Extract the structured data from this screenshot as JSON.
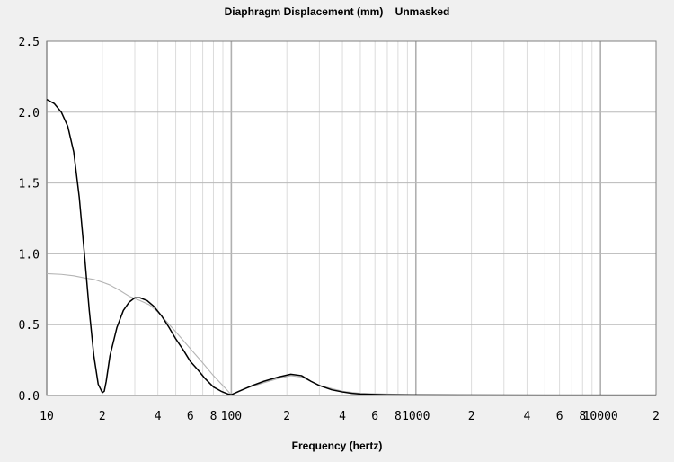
{
  "chart_data": {
    "type": "line",
    "title": "Diaphragm Displacement (mm)",
    "subtitle": "Unmasked",
    "xlabel": "Frequency (hertz)",
    "ylabel": "",
    "x_scale": "log",
    "xlim": [
      10,
      20000
    ],
    "ylim": [
      0,
      2.5
    ],
    "grid": true,
    "yticks": [
      {
        "value": 0,
        "label": "0.0"
      },
      {
        "value": 0.5,
        "label": "0.5"
      },
      {
        "value": 1.0,
        "label": "1.0"
      },
      {
        "value": 1.5,
        "label": "1.5"
      },
      {
        "value": 2.0,
        "label": "2.0"
      },
      {
        "value": 2.5,
        "label": "2.5"
      }
    ],
    "xticks": [
      {
        "value": 10,
        "label": "10"
      },
      {
        "value": 20,
        "label": "2"
      },
      {
        "value": 40,
        "label": "4"
      },
      {
        "value": 60,
        "label": "6"
      },
      {
        "value": 80,
        "label": "8"
      },
      {
        "value": 100,
        "label": "100"
      },
      {
        "value": 200,
        "label": "2"
      },
      {
        "value": 400,
        "label": "4"
      },
      {
        "value": 600,
        "label": "6"
      },
      {
        "value": 800,
        "label": "8"
      },
      {
        "value": 1000,
        "label": "1000"
      },
      {
        "value": 2000,
        "label": "2"
      },
      {
        "value": 4000,
        "label": "4"
      },
      {
        "value": 6000,
        "label": "6"
      },
      {
        "value": 8000,
        "label": "8"
      },
      {
        "value": 10000,
        "label": "10000"
      },
      {
        "value": 20000,
        "label": "2"
      }
    ],
    "series": [
      {
        "color": "#000000",
        "x": [
          10,
          11,
          12,
          13,
          14,
          15,
          16,
          17,
          18,
          19,
          20,
          20.5,
          21,
          22,
          24,
          26,
          28,
          30,
          32,
          35,
          38,
          42,
          46,
          50,
          55,
          60,
          66,
          72,
          80,
          88,
          96,
          100,
          110,
          130,
          150,
          180,
          210,
          240,
          270,
          300,
          350,
          400,
          450,
          500,
          600,
          700,
          1000,
          2000,
          5000,
          10000,
          20000
        ],
        "y": [
          2.09,
          2.06,
          2.0,
          1.9,
          1.72,
          1.4,
          1.0,
          0.6,
          0.28,
          0.08,
          0.02,
          0.03,
          0.1,
          0.28,
          0.48,
          0.6,
          0.66,
          0.69,
          0.69,
          0.67,
          0.63,
          0.56,
          0.48,
          0.4,
          0.32,
          0.24,
          0.18,
          0.12,
          0.06,
          0.03,
          0.01,
          0.005,
          0.03,
          0.07,
          0.1,
          0.13,
          0.15,
          0.14,
          0.1,
          0.07,
          0.04,
          0.025,
          0.015,
          0.01,
          0.007,
          0.005,
          0.004,
          0.003,
          0.002,
          0.002,
          0.002
        ]
      },
      {
        "color": "#b4b4b4",
        "x": [
          10,
          12,
          14,
          16,
          18,
          20,
          22,
          25,
          28,
          32,
          36,
          40,
          50,
          60,
          70,
          80,
          90,
          100,
          120,
          150,
          180,
          210,
          240,
          270,
          300,
          400,
          500,
          1000,
          2000,
          5000,
          10000,
          20000
        ],
        "y": [
          0.86,
          0.855,
          0.845,
          0.83,
          0.82,
          0.8,
          0.78,
          0.74,
          0.7,
          0.67,
          0.64,
          0.59,
          0.45,
          0.33,
          0.23,
          0.14,
          0.07,
          0.005,
          0.05,
          0.09,
          0.12,
          0.14,
          0.13,
          0.1,
          0.07,
          0.03,
          0.015,
          0.005,
          0.003,
          0.002,
          0.002,
          0.002
        ]
      }
    ]
  }
}
